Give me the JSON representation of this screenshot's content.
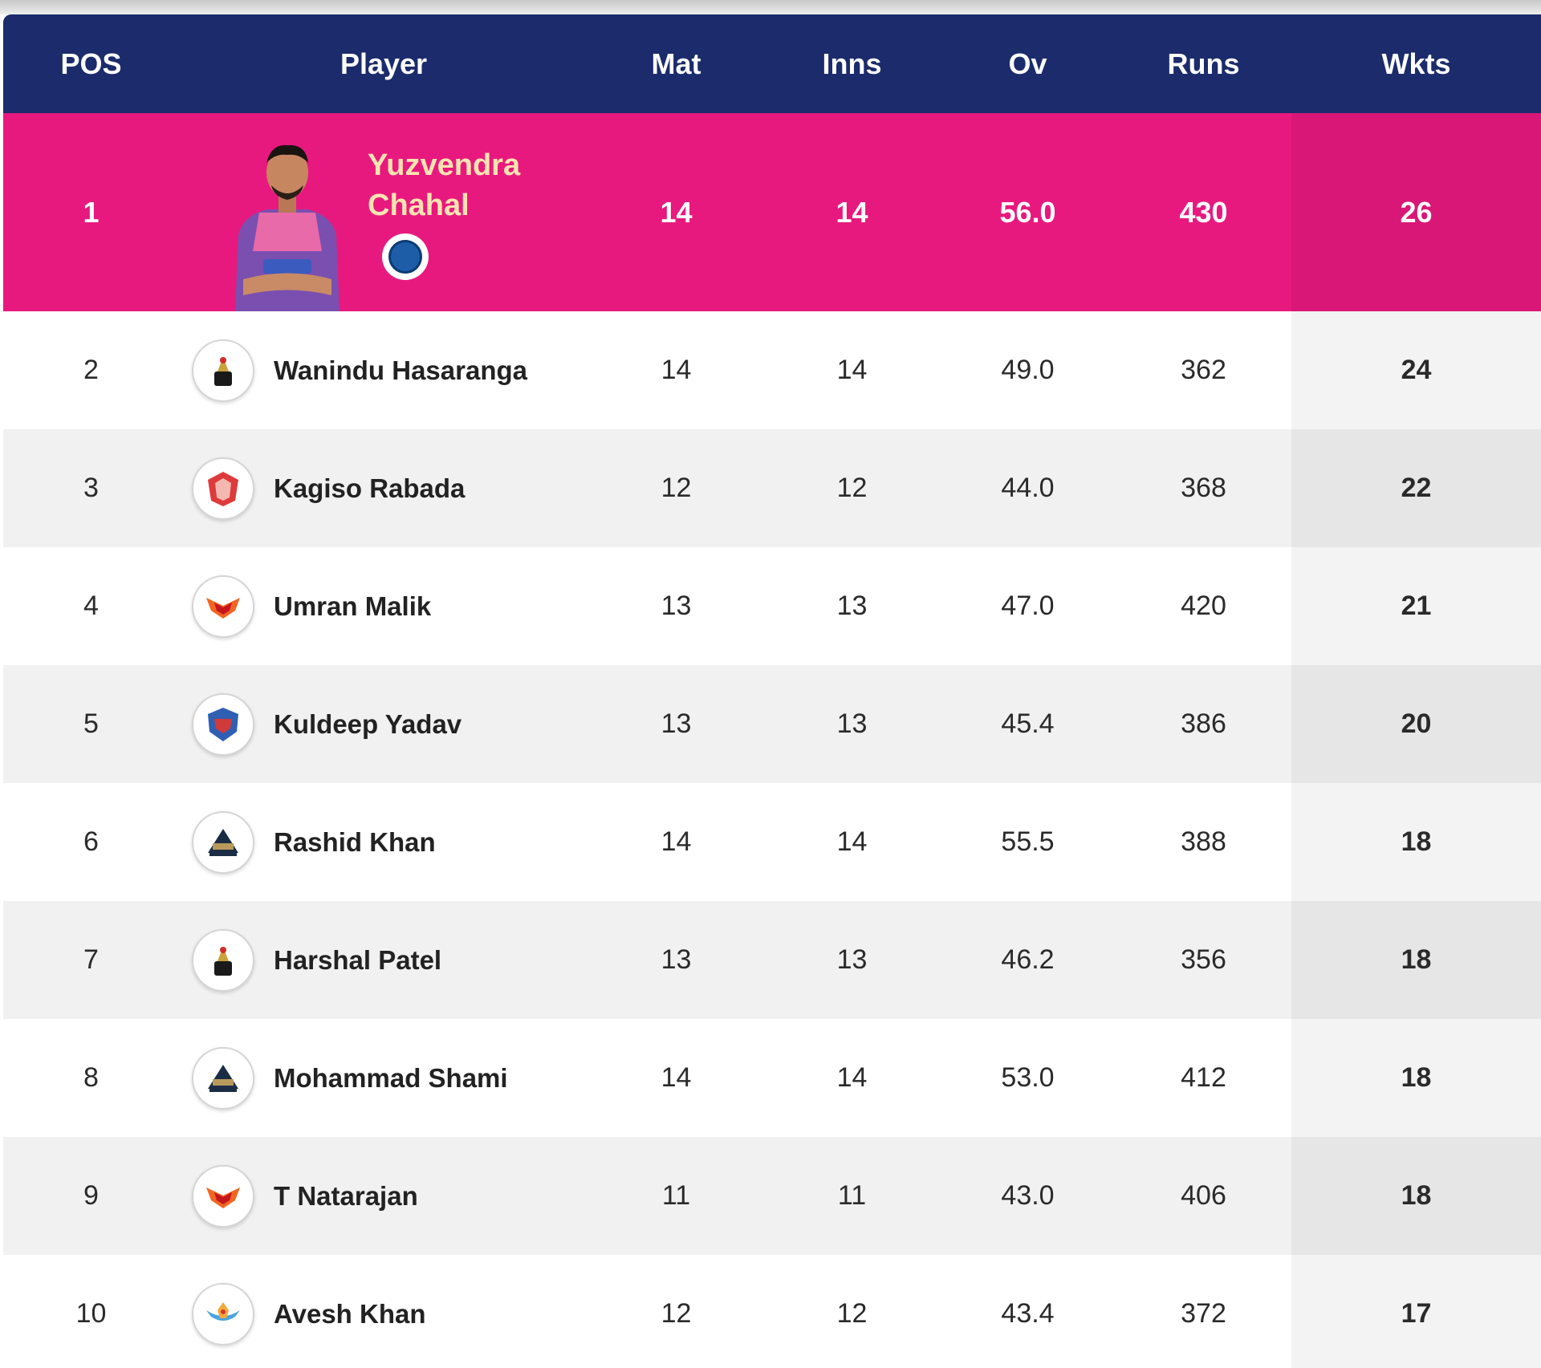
{
  "header": {
    "pos": "POS",
    "player": "Player",
    "mat": "Mat",
    "inns": "Inns",
    "ov": "Ov",
    "runs": "Runs",
    "wkts": "Wkts"
  },
  "leader": {
    "pos": "1",
    "first_name": "Yuzvendra",
    "last_name": "Chahal",
    "mat": "14",
    "inns": "14",
    "ov": "56.0",
    "runs": "430",
    "wkts": "26",
    "team_icon": "rr-team-icon"
  },
  "rows": [
    {
      "pos": "2",
      "name": "Wanindu Hasaranga",
      "mat": "14",
      "inns": "14",
      "ov": "49.0",
      "runs": "362",
      "wkts": "24",
      "team_icon": "rcb-logo-icon"
    },
    {
      "pos": "3",
      "name": "Kagiso Rabada",
      "mat": "12",
      "inns": "12",
      "ov": "44.0",
      "runs": "368",
      "wkts": "22",
      "team_icon": "pbks-logo-icon"
    },
    {
      "pos": "4",
      "name": "Umran Malik",
      "mat": "13",
      "inns": "13",
      "ov": "47.0",
      "runs": "420",
      "wkts": "21",
      "team_icon": "srh-logo-icon"
    },
    {
      "pos": "5",
      "name": "Kuldeep Yadav",
      "mat": "13",
      "inns": "13",
      "ov": "45.4",
      "runs": "386",
      "wkts": "20",
      "team_icon": "dc-logo-icon"
    },
    {
      "pos": "6",
      "name": "Rashid Khan",
      "mat": "14",
      "inns": "14",
      "ov": "55.5",
      "runs": "388",
      "wkts": "18",
      "team_icon": "gt-logo-icon"
    },
    {
      "pos": "7",
      "name": "Harshal Patel",
      "mat": "13",
      "inns": "13",
      "ov": "46.2",
      "runs": "356",
      "wkts": "18",
      "team_icon": "rcb-logo-icon"
    },
    {
      "pos": "8",
      "name": "Mohammad Shami",
      "mat": "14",
      "inns": "14",
      "ov": "53.0",
      "runs": "412",
      "wkts": "18",
      "team_icon": "gt-logo-icon"
    },
    {
      "pos": "9",
      "name": "T Natarajan",
      "mat": "11",
      "inns": "11",
      "ov": "43.0",
      "runs": "406",
      "wkts": "18",
      "team_icon": "srh-logo-icon"
    },
    {
      "pos": "10",
      "name": "Avesh Khan",
      "mat": "12",
      "inns": "12",
      "ov": "43.4",
      "runs": "372",
      "wkts": "17",
      "team_icon": "lsg-logo-icon"
    }
  ],
  "colors": {
    "header_bg": "#1b2b6b",
    "leader_bg": "#e8197e",
    "leader_name": "#ffe4b0"
  }
}
